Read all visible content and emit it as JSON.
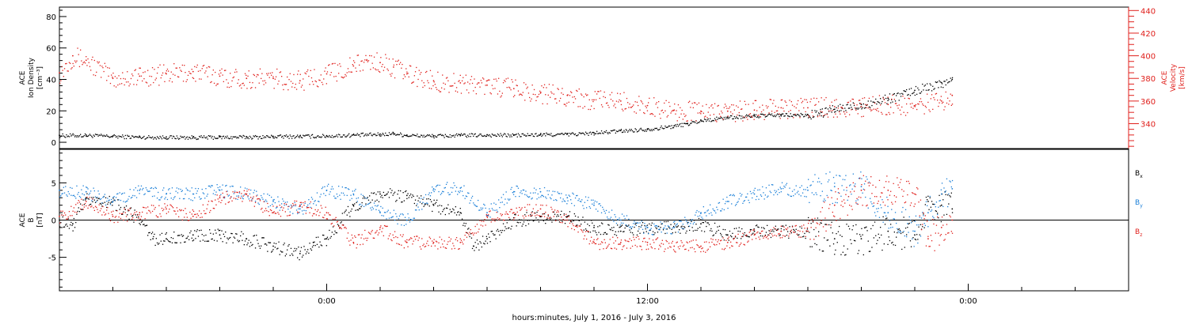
{
  "colors": {
    "black": "#000000",
    "red": "#e0201c",
    "blue": "#1a7fd8",
    "axis": "#000000",
    "background": "#ffffff"
  },
  "x_axis": {
    "label": "hours:minutes, July  1, 2016 - July  3, 2016",
    "range_hours": [
      -10,
      30
    ],
    "major_ticks": [
      0,
      12,
      24
    ],
    "tick_labels": [
      "0:00",
      "12:00",
      "0:00"
    ],
    "minor_step_hours": 2
  },
  "chart_data": [
    {
      "type": "scatter",
      "name": "ion-density-velocity",
      "left_axis": {
        "label_lines": [
          "ACE",
          "Ion Density",
          "[cm⁻³]"
        ],
        "ylim": [
          -4,
          86
        ],
        "ticks": [
          0,
          20,
          40,
          60,
          80
        ],
        "color": "#000000"
      },
      "right_axis": {
        "label_lines": [
          "ACE",
          "Velocity",
          "[km/s]"
        ],
        "ylim": [
          318,
          443
        ],
        "ticks": [
          340,
          360,
          380,
          400,
          420,
          440
        ],
        "color": "#e0201c"
      },
      "series": [
        {
          "name": "",
          "axis": "left",
          "color": "#000000",
          "points": [
            [
              -10,
              4.5
            ],
            [
              -9,
              4.6
            ],
            [
              -8,
              4.0
            ],
            [
              -7,
              3.5
            ],
            [
              -6,
              3.4
            ],
            [
              -5,
              3.3
            ],
            [
              -4,
              3.4
            ],
            [
              -3,
              3.5
            ],
            [
              -2,
              3.8
            ],
            [
              -1,
              4.0
            ],
            [
              0,
              4.2
            ],
            [
              1,
              4.8
            ],
            [
              2,
              5.2
            ],
            [
              2.5,
              5.8
            ],
            [
              3,
              4.6
            ],
            [
              4,
              4.2
            ],
            [
              5,
              4.6
            ],
            [
              6,
              4.8
            ],
            [
              7,
              4.7
            ],
            [
              8,
              5.0
            ],
            [
              9,
              5.3
            ],
            [
              10,
              6.0
            ],
            [
              11,
              7.5
            ],
            [
              12,
              8.5
            ],
            [
              13,
              10.5
            ],
            [
              13.5,
              12.0
            ],
            [
              14,
              14.0
            ],
            [
              15,
              16.0
            ],
            [
              16,
              17.0
            ],
            [
              17,
              17.5
            ],
            [
              18,
              17.5
            ],
            [
              18.5,
              19.0
            ],
            [
              19,
              21.0
            ],
            [
              20,
              24.0
            ],
            [
              21,
              28.0
            ],
            [
              22,
              33.0
            ],
            [
              23,
              38.0
            ],
            [
              23.4,
              40.0
            ]
          ]
        },
        {
          "name": "",
          "axis": "right",
          "color": "#e0201c",
          "points": [
            [
              -10,
              385
            ],
            [
              -9.5,
              400
            ],
            [
              -9,
              396
            ],
            [
              -8,
              380
            ],
            [
              -7,
              382
            ],
            [
              -6,
              384
            ],
            [
              -5,
              386
            ],
            [
              -4,
              382
            ],
            [
              -3,
              380
            ],
            [
              -2,
              380
            ],
            [
              -1,
              378
            ],
            [
              0,
              384
            ],
            [
              1,
              391
            ],
            [
              1.5,
              396
            ],
            [
              2,
              394
            ],
            [
              2.5,
              390
            ],
            [
              3,
              384
            ],
            [
              4,
              378
            ],
            [
              5,
              376
            ],
            [
              6,
              374
            ],
            [
              7,
              371
            ],
            [
              8,
              367
            ],
            [
              9,
              365
            ],
            [
              10,
              361
            ],
            [
              11,
              360
            ],
            [
              12,
              356
            ],
            [
              13,
              352
            ],
            [
              14,
              351
            ],
            [
              15,
              351
            ],
            [
              16,
              352
            ],
            [
              17,
              354
            ],
            [
              18,
              354
            ],
            [
              19,
              355
            ],
            [
              20,
              355
            ],
            [
              21,
              357
            ],
            [
              22,
              356
            ],
            [
              23,
              360
            ],
            [
              23.4,
              365
            ]
          ]
        }
      ]
    },
    {
      "type": "scatter",
      "name": "magnetic-field",
      "left_axis": {
        "label_lines": [
          "ACE",
          "B",
          "[nT]"
        ],
        "ylim": [
          -9.5,
          9.5
        ],
        "ticks": [
          -5,
          0,
          5
        ],
        "color": "#000000"
      },
      "zero_line": true,
      "series": [
        {
          "name": "B",
          "subscript": "x",
          "color": "#000000",
          "points": [
            [
              -10,
              0
            ],
            [
              -9.5,
              -0.5
            ],
            [
              -9,
              3
            ],
            [
              -8,
              2.5
            ],
            [
              -7,
              0
            ],
            [
              -6.5,
              -2.5
            ],
            [
              -6,
              -2.5
            ],
            [
              -5,
              -2
            ],
            [
              -4,
              -2
            ],
            [
              -3,
              -2.5
            ],
            [
              -2,
              -3.5
            ],
            [
              -1,
              -4.5
            ],
            [
              -0.5,
              -3
            ],
            [
              0,
              -2.5
            ],
            [
              1,
              2
            ],
            [
              2,
              3.5
            ],
            [
              3,
              3.3
            ],
            [
              4,
              2
            ],
            [
              5,
              1
            ],
            [
              5.5,
              -3.5
            ],
            [
              6,
              -2.5
            ],
            [
              7,
              0
            ],
            [
              8,
              0.5
            ],
            [
              9,
              0.5
            ],
            [
              10,
              -1
            ],
            [
              11,
              -1.5
            ],
            [
              12,
              -1
            ],
            [
              13,
              -1
            ],
            [
              14,
              -0.5
            ],
            [
              15,
              -2
            ],
            [
              16,
              -1.5
            ],
            [
              17,
              -1.5
            ],
            [
              18,
              -1.5
            ],
            [
              19,
              -2.5
            ],
            [
              20,
              -2.5
            ],
            [
              21,
              -1.5
            ],
            [
              22,
              -2
            ],
            [
              22.5,
              2.5
            ],
            [
              23,
              2
            ],
            [
              23.4,
              1.5
            ]
          ]
        },
        {
          "name": "B",
          "subscript": "y",
          "color": "#1a7fd8",
          "points": [
            [
              -10,
              4
            ],
            [
              -9,
              3.8
            ],
            [
              -8,
              2.5
            ],
            [
              -7,
              4
            ],
            [
              -6,
              3.5
            ],
            [
              -5,
              3.5
            ],
            [
              -4,
              4
            ],
            [
              -3,
              3.5
            ],
            [
              -2,
              2.5
            ],
            [
              -1,
              1.5
            ],
            [
              0,
              4
            ],
            [
              1,
              3.5
            ],
            [
              2,
              1
            ],
            [
              3,
              0
            ],
            [
              4,
              4.2
            ],
            [
              5,
              4.3
            ],
            [
              6,
              1
            ],
            [
              7,
              3.8
            ],
            [
              8,
              3.8
            ],
            [
              9,
              3
            ],
            [
              10,
              2
            ],
            [
              11,
              0
            ],
            [
              12,
              -1
            ],
            [
              13,
              -1
            ],
            [
              14,
              1
            ],
            [
              15,
              2.5
            ],
            [
              16,
              3.5
            ],
            [
              17,
              4.2
            ],
            [
              18,
              4
            ],
            [
              19,
              4.5
            ],
            [
              20,
              4.5
            ],
            [
              21,
              1
            ],
            [
              22,
              -1.5
            ],
            [
              22.5,
              1
            ],
            [
              23,
              3.5
            ],
            [
              23.4,
              4.2
            ]
          ]
        },
        {
          "name": "B",
          "subscript": "z",
          "color": "#e0201c",
          "points": [
            [
              -10,
              0.5
            ],
            [
              -9,
              2.5
            ],
            [
              -8,
              0.5
            ],
            [
              -7,
              1
            ],
            [
              -6,
              1.5
            ],
            [
              -5,
              0.5
            ],
            [
              -4,
              3
            ],
            [
              -3,
              3.5
            ],
            [
              -2,
              1
            ],
            [
              -1,
              2
            ],
            [
              0,
              1
            ],
            [
              1,
              -3
            ],
            [
              2,
              -1
            ],
            [
              3,
              -3
            ],
            [
              4,
              -3
            ],
            [
              5,
              -3
            ],
            [
              6,
              0.5
            ],
            [
              7,
              1
            ],
            [
              8,
              1.5
            ],
            [
              9,
              0
            ],
            [
              10,
              -3
            ],
            [
              11,
              -3
            ],
            [
              12,
              -3
            ],
            [
              13,
              -3.5
            ],
            [
              14,
              -3.5
            ],
            [
              15,
              -3
            ],
            [
              16,
              -2
            ],
            [
              17,
              -1.5
            ],
            [
              18,
              -1.5
            ],
            [
              19,
              2
            ],
            [
              20,
              4
            ],
            [
              21,
              4
            ],
            [
              22,
              3.5
            ],
            [
              22.5,
              -2.5
            ],
            [
              23,
              -1
            ],
            [
              23.4,
              0
            ]
          ]
        }
      ]
    }
  ]
}
